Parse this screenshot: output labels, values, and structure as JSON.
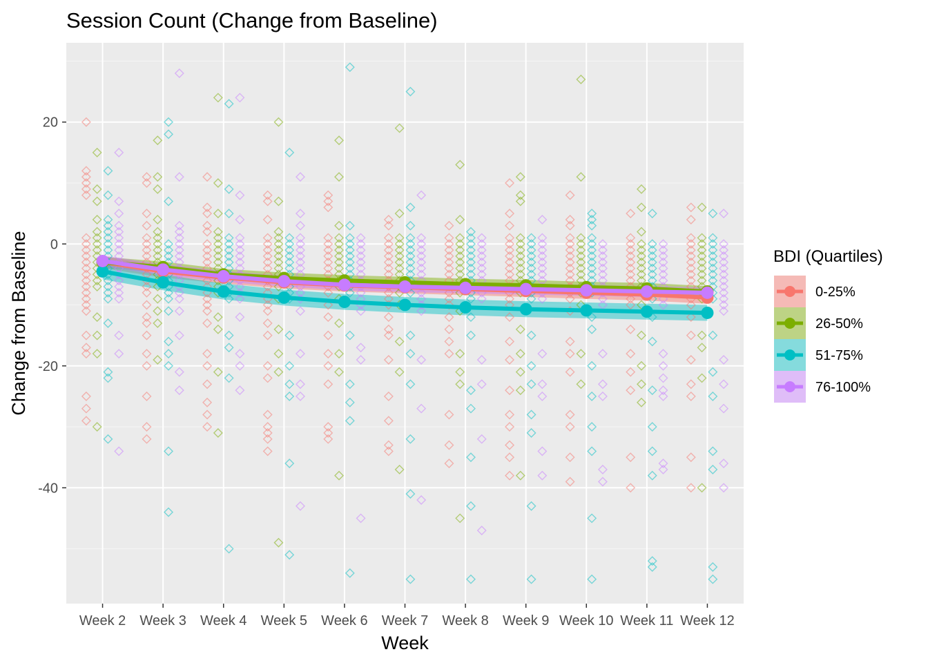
{
  "chart_data": {
    "type": "scatter",
    "title": "Session Count (Change from Baseline)",
    "xlabel": "Week",
    "ylabel": "Change from Baseline",
    "categories": [
      "Week 2",
      "Week 3",
      "Week 4",
      "Week 5",
      "Week 6",
      "Week 7",
      "Week 8",
      "Week 9",
      "Week 10",
      "Week 11",
      "Week 12"
    ],
    "ylim": [
      -59,
      33
    ],
    "yticks": [
      20,
      0,
      -20,
      -40
    ],
    "grid": true,
    "legend": {
      "title": "BDI (Quartiles)",
      "position": "right"
    },
    "series": [
      {
        "name": "0-25%",
        "color": "#F8766D",
        "trend": [
          -3,
          -4.5,
          -5.5,
          -6.3,
          -6.8,
          -7.1,
          -7.4,
          -7.7,
          -8.0,
          -8.3,
          -8.8
        ],
        "ci": 1.0,
        "points": [
          [
            20,
            12,
            11,
            10,
            9,
            8,
            1,
            0,
            -1,
            -2,
            -3,
            -4,
            -5,
            -6,
            -7,
            -8,
            -9,
            -10,
            -11,
            -15,
            -17,
            -18,
            -25,
            -27,
            -29
          ],
          [
            11,
            10,
            5,
            3,
            1,
            0,
            -1,
            -2,
            -3,
            -4,
            -5,
            -6,
            -7,
            -8,
            -10,
            -12,
            -13,
            -15,
            -18,
            -20,
            -25,
            -30,
            -32
          ],
          [
            11,
            6,
            5,
            3,
            2,
            0,
            -1,
            -2,
            -3,
            -4,
            -5,
            -6,
            -7,
            -8,
            -9,
            -10,
            -11,
            -13,
            -18,
            -20,
            -23,
            -26,
            -28,
            -30
          ],
          [
            8,
            7,
            4,
            1,
            0,
            -1,
            -2,
            -3,
            -4,
            -5,
            -6,
            -7,
            -8,
            -9,
            -10,
            -11,
            -13,
            -15,
            -20,
            -22,
            -28,
            -30,
            -31,
            -32,
            -34
          ],
          [
            8,
            7,
            6,
            1,
            0,
            -1,
            -2,
            -3,
            -4,
            -5,
            -6,
            -7,
            -8,
            -10,
            -12,
            -15,
            -18,
            -20,
            -23,
            -30,
            -31,
            -32
          ],
          [
            4,
            3,
            1,
            0,
            -1,
            -2,
            -3,
            -4,
            -5,
            -6,
            -7,
            -8,
            -9,
            -10,
            -12,
            -14,
            -15,
            -19,
            -25,
            -29,
            -33,
            -34
          ],
          [
            3,
            1,
            0,
            -1,
            -2,
            -3,
            -4,
            -5,
            -6,
            -7,
            -8,
            -9,
            -10,
            -12,
            -14,
            -16,
            -18,
            -28,
            -33,
            -36
          ],
          [
            10,
            5,
            3,
            1,
            0,
            -1,
            -2,
            -3,
            -4,
            -5,
            -6,
            -7,
            -8,
            -9,
            -10,
            -12,
            -16,
            -19,
            -24,
            -28,
            -30,
            -33,
            -35,
            -38
          ],
          [
            8,
            4,
            3,
            1,
            0,
            -1,
            -2,
            -3,
            -4,
            -5,
            -6,
            -7,
            -8,
            -9,
            -11,
            -16,
            -18,
            -21,
            -28,
            -30,
            -35,
            -39
          ],
          [
            5,
            1,
            0,
            -1,
            -2,
            -3,
            -4,
            -5,
            -6,
            -7,
            -8,
            -9,
            -10,
            -14,
            -18,
            -21,
            -24,
            -35,
            -40
          ],
          [
            6,
            4,
            1,
            0,
            -1,
            -2,
            -3,
            -4,
            -5,
            -6,
            -7,
            -8,
            -9,
            -10,
            -12,
            -15,
            -19,
            -23,
            -25,
            -35,
            -40
          ]
        ]
      },
      {
        "name": "26-50%",
        "color": "#7CAE00",
        "trend": [
          -3,
          -3.8,
          -5.0,
          -5.6,
          -6.0,
          -6.3,
          -6.6,
          -6.8,
          -7.1,
          -7.3,
          -7.8
        ],
        "ci": 0.9,
        "points": [
          [
            15,
            9,
            7,
            4,
            2,
            1,
            0,
            -1,
            -2,
            -3,
            -4,
            -5,
            -6,
            -7,
            -12,
            -15,
            -18,
            -30
          ],
          [
            17,
            11,
            9,
            4,
            2,
            1,
            0,
            -1,
            -2,
            -3,
            -4,
            -5,
            -6,
            -7,
            -9,
            -11,
            -13,
            -19
          ],
          [
            24,
            10,
            5,
            2,
            1,
            0,
            -1,
            -2,
            -3,
            -4,
            -5,
            -6,
            -7,
            -8,
            -12,
            -14,
            -21,
            -31
          ],
          [
            20,
            7,
            2,
            1,
            0,
            -1,
            -2,
            -3,
            -4,
            -5,
            -6,
            -7,
            -9,
            -14,
            -18,
            -21,
            -49
          ],
          [
            17,
            11,
            3,
            1,
            0,
            -1,
            -2,
            -3,
            -4,
            -5,
            -6,
            -7,
            -9,
            -13,
            -18,
            -21,
            -38
          ],
          [
            19,
            5,
            1,
            0,
            -1,
            -2,
            -3,
            -4,
            -5,
            -6,
            -7,
            -8,
            -10,
            -16,
            -21,
            -37
          ],
          [
            13,
            4,
            1,
            0,
            -1,
            -2,
            -3,
            -4,
            -5,
            -6,
            -7,
            -8,
            -11,
            -18,
            -21,
            -23,
            -45
          ],
          [
            11,
            8,
            7,
            1,
            0,
            -1,
            -2,
            -3,
            -4,
            -5,
            -6,
            -7,
            -8,
            -14,
            -18,
            -21,
            -24,
            -38
          ],
          [
            27,
            11,
            1,
            0,
            -1,
            -2,
            -3,
            -4,
            -5,
            -6,
            -7,
            -8,
            -10,
            -18,
            -23
          ],
          [
            9,
            6,
            2,
            0,
            -1,
            -2,
            -3,
            -4,
            -5,
            -6,
            -7,
            -8,
            -10,
            -15,
            -20,
            -23,
            -26
          ],
          [
            6,
            1,
            0,
            -1,
            -2,
            -3,
            -4,
            -5,
            -6,
            -7,
            -8,
            -9,
            -15,
            -17,
            -22,
            -40
          ]
        ]
      },
      {
        "name": "51-75%",
        "color": "#00BFC4",
        "trend": [
          -4.5,
          -6.3,
          -7.8,
          -8.8,
          -9.5,
          -10.0,
          -10.4,
          -10.7,
          -10.9,
          -11.1,
          -11.3
        ],
        "ci": 1.3,
        "points": [
          [
            12,
            8,
            4,
            3,
            2,
            1,
            0,
            -1,
            -2,
            -3,
            -4,
            -5,
            -6,
            -7,
            -8,
            -9,
            -13,
            -21,
            -22,
            -32
          ],
          [
            20,
            18,
            7,
            0,
            -1,
            -2,
            -3,
            -4,
            -5,
            -6,
            -7,
            -8,
            -9,
            -11,
            -16,
            -18,
            -20,
            -34,
            -44
          ],
          [
            23,
            9,
            5,
            1,
            0,
            -1,
            -2,
            -3,
            -4,
            -5,
            -6,
            -7,
            -8,
            -9,
            -15,
            -17,
            -22,
            -50
          ],
          [
            15,
            1,
            0,
            -1,
            -2,
            -3,
            -4,
            -5,
            -6,
            -7,
            -8,
            -9,
            -15,
            -20,
            -23,
            -25,
            -36,
            -51
          ],
          [
            29,
            3,
            1,
            0,
            -1,
            -2,
            -3,
            -4,
            -5,
            -6,
            -7,
            -8,
            -15,
            -23,
            -26,
            -29,
            -54
          ],
          [
            25,
            6,
            3,
            1,
            0,
            -1,
            -2,
            -3,
            -4,
            -5,
            -6,
            -7,
            -8,
            -15,
            -18,
            -23,
            -32,
            -41,
            -55
          ],
          [
            2,
            1,
            0,
            -1,
            -2,
            -3,
            -4,
            -5,
            -6,
            -7,
            -8,
            -9,
            -12,
            -15,
            -24,
            -27,
            -35,
            -43,
            -55
          ],
          [
            1,
            0,
            -1,
            -2,
            -3,
            -4,
            -5,
            -6,
            -7,
            -8,
            -9,
            -15,
            -20,
            -23,
            -28,
            -31,
            -43,
            -55
          ],
          [
            5,
            4,
            3,
            1,
            0,
            -1,
            -2,
            -3,
            -4,
            -5,
            -6,
            -7,
            -8,
            -12,
            -14,
            -20,
            -25,
            -30,
            -34,
            -45,
            -55
          ],
          [
            5,
            0,
            -1,
            -2,
            -3,
            -4,
            -5,
            -6,
            -7,
            -8,
            -9,
            -12,
            -16,
            -24,
            -30,
            -34,
            -38,
            -52,
            -53
          ],
          [
            5,
            1,
            0,
            -1,
            -2,
            -3,
            -4,
            -5,
            -6,
            -7,
            -8,
            -9,
            -15,
            -21,
            -25,
            -34,
            -37,
            -53,
            -55
          ]
        ]
      },
      {
        "name": "76-100%",
        "color": "#C77CFF",
        "trend": [
          -2.8,
          -4.2,
          -5.3,
          -6.1,
          -6.7,
          -7.0,
          -7.2,
          -7.4,
          -7.6,
          -7.8,
          -8.0
        ],
        "ci": 0.9,
        "points": [
          [
            15,
            7,
            5,
            3,
            2,
            1,
            0,
            -1,
            -2,
            -3,
            -4,
            -5,
            -6,
            -7,
            -8,
            -9,
            -15,
            -18,
            -34
          ],
          [
            28,
            11,
            3,
            2,
            1,
            0,
            -1,
            -2,
            -3,
            -4,
            -5,
            -6,
            -7,
            -8,
            -9,
            -11,
            -15,
            -21,
            -24
          ],
          [
            24,
            8,
            4,
            1,
            0,
            -1,
            -2,
            -3,
            -4,
            -5,
            -6,
            -7,
            -8,
            -9,
            -12,
            -18,
            -20,
            -24
          ],
          [
            11,
            5,
            3,
            1,
            0,
            -1,
            -2,
            -3,
            -4,
            -5,
            -6,
            -7,
            -8,
            -9,
            -11,
            -18,
            -23,
            -25,
            -43
          ],
          [
            1,
            0,
            -1,
            -2,
            -3,
            -4,
            -5,
            -6,
            -7,
            -8,
            -9,
            -10,
            -11,
            -17,
            -19,
            -45
          ],
          [
            8,
            1,
            0,
            -1,
            -2,
            -3,
            -4,
            -5,
            -6,
            -7,
            -8,
            -9,
            -10,
            -11,
            -19,
            -27,
            -42
          ],
          [
            1,
            0,
            -1,
            -2,
            -3,
            -4,
            -5,
            -6,
            -7,
            -8,
            -9,
            -19,
            -23,
            -32,
            -47
          ],
          [
            4,
            1,
            0,
            -1,
            -2,
            -3,
            -4,
            -5,
            -6,
            -7,
            -8,
            -9,
            -18,
            -23,
            -25,
            -34,
            -38
          ],
          [
            0,
            -1,
            -2,
            -3,
            -4,
            -5,
            -6,
            -7,
            -8,
            -9,
            -10,
            -18,
            -23,
            -25,
            -37,
            -39
          ],
          [
            0,
            -1,
            -2,
            -3,
            -4,
            -5,
            -6,
            -7,
            -8,
            -9,
            -10,
            -18,
            -20,
            -22,
            -24,
            -25,
            -36,
            -37
          ],
          [
            5,
            0,
            -1,
            -2,
            -3,
            -4,
            -5,
            -6,
            -7,
            -8,
            -9,
            -10,
            -11,
            -19,
            -23,
            -27,
            -36,
            -40
          ]
        ]
      }
    ]
  }
}
